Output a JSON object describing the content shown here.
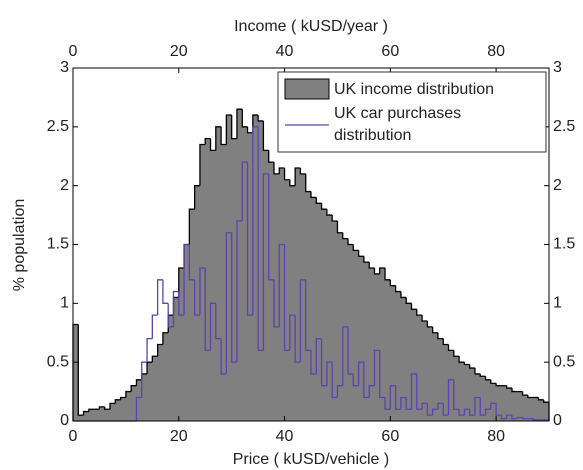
{
  "chart_data": {
    "type": "histogram",
    "title": "Income ( kUSD/year )",
    "x_label": "Price ( kUSD/vehicle )",
    "y_label": "% population",
    "bins": [
      0,
      1,
      2,
      3,
      4,
      5,
      6,
      7,
      8,
      9,
      10,
      11,
      12,
      13,
      14,
      15,
      16,
      17,
      18,
      19,
      20,
      21,
      22,
      23,
      24,
      25,
      26,
      27,
      28,
      29,
      30,
      31,
      32,
      33,
      34,
      35,
      36,
      37,
      38,
      39,
      40,
      41,
      42,
      43,
      44,
      45,
      46,
      47,
      48,
      49,
      50,
      51,
      52,
      53,
      54,
      55,
      56,
      57,
      58,
      59,
      60,
      61,
      62,
      63,
      64,
      65,
      66,
      67,
      68,
      69,
      70,
      71,
      72,
      73,
      74,
      75,
      76,
      77,
      78,
      79,
      80,
      81,
      82,
      83,
      84,
      85,
      86,
      87,
      88,
      89,
      90
    ],
    "series": [
      {
        "name": "UK income distribution",
        "color": "#808080",
        "outline": "#000000",
        "filled": true,
        "values": [
          0.82,
          0.05,
          0.08,
          0.1,
          0.1,
          0.12,
          0.1,
          0.15,
          0.18,
          0.2,
          0.25,
          0.3,
          0.35,
          0.4,
          0.5,
          0.55,
          0.65,
          0.75,
          0.9,
          1.05,
          1.3,
          1.5,
          1.8,
          2.0,
          2.35,
          2.4,
          2.3,
          2.5,
          2.35,
          2.6,
          2.4,
          2.65,
          2.5,
          2.45,
          2.6,
          2.55,
          2.3,
          2.2,
          2.1,
          2.15,
          2.05,
          2.0,
          2.15,
          2.1,
          1.95,
          1.9,
          1.85,
          1.8,
          1.75,
          1.7,
          1.6,
          1.55,
          1.5,
          1.45,
          1.4,
          1.35,
          1.3,
          1.25,
          1.3,
          1.2,
          1.15,
          1.1,
          1.05,
          1.0,
          0.95,
          0.9,
          0.85,
          0.8,
          0.75,
          0.7,
          0.65,
          0.6,
          0.55,
          0.5,
          0.48,
          0.45,
          0.4,
          0.38,
          0.35,
          0.32,
          0.3,
          0.3,
          0.28,
          0.25,
          0.25,
          0.22,
          0.2,
          0.2,
          0.18,
          0.16
        ]
      },
      {
        "name": "UK car purchases distribution",
        "color": "#5b43b0",
        "filled": false,
        "values": [
          0,
          0,
          0,
          0,
          0,
          0,
          0,
          0,
          0,
          0,
          0,
          0,
          0.2,
          0.5,
          0.7,
          0.9,
          1.2,
          1.0,
          0.8,
          1.1,
          0.9,
          1.5,
          1.2,
          0.9,
          1.3,
          0.6,
          1.0,
          0.7,
          0.4,
          1.6,
          0.5,
          1.7,
          2.2,
          0.9,
          2.5,
          0.6,
          2.1,
          1.2,
          0.8,
          1.5,
          0.6,
          0.9,
          0.5,
          1.2,
          0.6,
          0.4,
          0.7,
          0.3,
          0.5,
          0.2,
          0.3,
          0.8,
          0.4,
          0.3,
          0.5,
          0.2,
          0.3,
          0.6,
          0.2,
          0.1,
          0.3,
          0.1,
          0.2,
          0.1,
          0.4,
          0.1,
          0.15,
          0.05,
          0.1,
          0.15,
          0.05,
          0.35,
          0.1,
          0.05,
          0.1,
          0.05,
          0.2,
          0.05,
          0.1,
          0.15,
          0.05,
          0.02,
          0.05,
          0.02,
          0.03,
          0.02,
          0.02,
          0.01,
          0.01,
          0.01
        ]
      }
    ],
    "xlim": [
      0,
      90
    ],
    "xticks": [
      0,
      20,
      40,
      60,
      80
    ],
    "x2lim": [
      0,
      90
    ],
    "x2ticks": [
      0,
      20,
      40,
      60,
      80
    ],
    "ylim": [
      0,
      3
    ],
    "yticks": [
      0,
      0.5,
      1,
      1.5,
      2,
      2.5,
      3
    ],
    "y2lim": [
      0,
      3
    ],
    "y2ticks": [
      0,
      0.5,
      1,
      1.5,
      2,
      2.5,
      3
    ],
    "grid": false,
    "legend": "upper right"
  }
}
